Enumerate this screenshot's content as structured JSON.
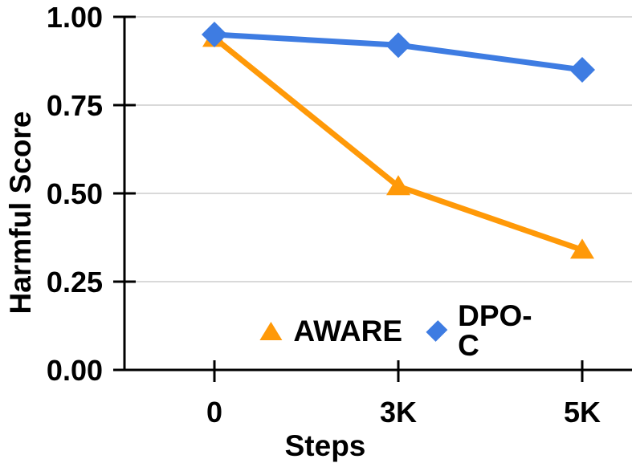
{
  "chart_data": {
    "type": "line",
    "title": "",
    "xlabel": "Steps",
    "ylabel": "Harmful Score",
    "categories": [
      "0",
      "3K",
      "5K"
    ],
    "series": [
      {
        "name": "AWARE",
        "marker": "triangle",
        "color": "#FF9908",
        "values": [
          0.94,
          0.52,
          0.34
        ]
      },
      {
        "name": "DPO-C",
        "marker": "diamond",
        "color": "#3E7CE2",
        "values": [
          0.95,
          0.92,
          0.85
        ]
      }
    ],
    "y_ticks": [
      {
        "value": 0.0,
        "label": "0.00"
      },
      {
        "value": 0.25,
        "label": "0.25"
      },
      {
        "value": 0.5,
        "label": "0.50"
      },
      {
        "value": 0.75,
        "label": "0.75"
      },
      {
        "value": 1.0,
        "label": "1.00"
      }
    ],
    "ylim": [
      0,
      1
    ],
    "grid": true,
    "legend": {
      "position": "inside-bottom-center",
      "entries": [
        "AWARE",
        "DPO-C"
      ]
    },
    "colors": {
      "grid": "#D9D9D9",
      "axis": "#000000",
      "text": "#000000",
      "background": "#FFFFFF"
    }
  }
}
